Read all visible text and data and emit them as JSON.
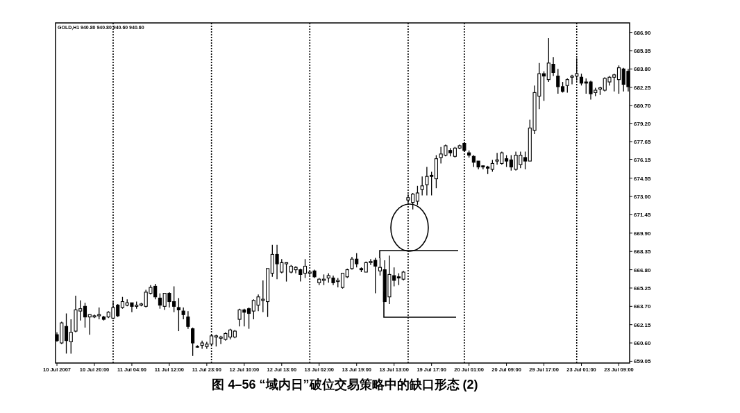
{
  "chart_data": {
    "type": "candlestick",
    "title": "图 4–56 “域内日”破位交易策略中的缺口形态 (2)",
    "annotations": [
      "GOLD,H1 940.80 940.80 940.60 940.60"
    ],
    "categories": [
      "10 Jul 2007",
      null,
      null,
      null,
      null,
      null,
      null,
      null,
      "10 Jul 20:00",
      null,
      null,
      null,
      null,
      null,
      null,
      null,
      "11 Jul 04:00",
      null,
      null,
      null,
      null,
      null,
      null,
      null,
      "11 Jul 12:00",
      null,
      null,
      null,
      null,
      null,
      null,
      null,
      "11 Jul 23:00",
      null,
      null,
      null,
      null,
      null,
      null,
      null,
      "12 Jul 10:00",
      null,
      null,
      null,
      null,
      null,
      null,
      null,
      "12 Jul 13:00",
      null,
      null,
      null,
      null,
      null,
      null,
      null,
      "13 Jul 02:00",
      null,
      null,
      null,
      null,
      null,
      null,
      null,
      "13 Jul 19:00",
      null,
      null,
      null,
      null,
      null,
      null,
      null,
      "13 Jul 13:00",
      null,
      null,
      null,
      null,
      null,
      null,
      null,
      "19 Jul 17:00",
      null,
      null,
      null,
      null,
      null,
      null,
      null,
      "20 Jul 01:00",
      null,
      null,
      null,
      null,
      null,
      null,
      null,
      "20 Jul 09:00",
      null,
      null,
      null,
      null,
      null,
      null,
      null,
      "29 Jul 17:00",
      null,
      null,
      null,
      null,
      null,
      null,
      null,
      "23 Jul 01:00",
      null,
      null,
      null,
      null,
      null,
      null,
      null,
      "23 Jul 09:00",
      null,
      null
    ],
    "ohlc": [
      [
        661.3,
        661.5,
        660.7,
        660.8
      ],
      [
        660.6,
        662.4,
        660.5,
        662.3
      ],
      [
        662.0,
        663.1,
        659.7,
        660.8
      ],
      [
        660.7,
        662.6,
        659.7,
        661.5
      ],
      [
        661.6,
        664.6,
        661.5,
        663.4
      ],
      [
        663.3,
        664.2,
        662.5,
        663.5
      ],
      [
        663.7,
        664.0,
        661.9,
        662.8
      ],
      [
        662.8,
        663.0,
        661.3,
        663.0
      ],
      [
        662.8,
        663.0,
        662.7,
        662.9
      ],
      [
        662.9,
        663.6,
        662.6,
        663.0
      ],
      [
        662.8,
        662.9,
        662.5,
        662.6
      ],
      [
        662.8,
        663.3,
        662.7,
        663.2
      ],
      [
        662.7,
        664.1,
        662.6,
        663.6
      ],
      [
        663.8,
        663.9,
        662.8,
        662.9
      ],
      [
        663.6,
        664.5,
        663.5,
        664.1
      ],
      [
        663.8,
        664.3,
        663.7,
        664.0
      ],
      [
        664.0,
        664.0,
        663.2,
        663.7
      ],
      [
        663.7,
        664.1,
        663.5,
        663.8
      ],
      [
        663.8,
        664.0,
        663.7,
        663.9
      ],
      [
        663.7,
        665.1,
        663.6,
        664.9
      ],
      [
        664.8,
        665.5,
        664.7,
        665.3
      ],
      [
        665.4,
        665.6,
        664.3,
        664.5
      ],
      [
        664.4,
        664.8,
        663.5,
        663.8
      ],
      [
        663.7,
        664.8,
        663.4,
        664.8
      ],
      [
        664.8,
        664.9,
        663.6,
        664.1
      ],
      [
        664.1,
        665.4,
        663.2,
        663.7
      ],
      [
        663.6,
        664.4,
        661.6,
        663.4
      ],
      [
        663.3,
        663.6,
        662.6,
        663.0
      ],
      [
        662.8,
        663.3,
        661.8,
        662.0
      ],
      [
        661.8,
        661.9,
        659.5,
        660.6
      ],
      [
        660.3,
        660.4,
        660.2,
        660.3
      ],
      [
        660.4,
        660.8,
        660.1,
        660.6
      ],
      [
        660.3,
        660.7,
        660.1,
        660.5
      ],
      [
        660.5,
        661.3,
        660.4,
        661.2
      ],
      [
        661.1,
        661.3,
        660.3,
        661.2
      ],
      [
        661.0,
        661.2,
        660.5,
        661.1
      ],
      [
        660.9,
        661.5,
        660.8,
        661.4
      ],
      [
        661.1,
        661.8,
        660.9,
        661.7
      ],
      [
        661.1,
        661.7,
        661.0,
        661.6
      ],
      [
        662.6,
        663.5,
        662.0,
        663.4
      ],
      [
        663.4,
        663.5,
        662.0,
        663.2
      ],
      [
        663.5,
        663.6,
        661.8,
        663.1
      ],
      [
        663.3,
        664.3,
        662.6,
        664.2
      ],
      [
        663.8,
        664.7,
        663.3,
        664.5
      ],
      [
        664.2,
        665.9,
        663.2,
        664.3
      ],
      [
        664.1,
        666.9,
        662.8,
        666.9
      ],
      [
        666.5,
        668.9,
        666.2,
        668.1
      ],
      [
        668.1,
        668.9,
        666.0,
        667.3
      ],
      [
        666.6,
        667.7,
        666.5,
        667.4
      ],
      [
        667.3,
        667.4,
        665.8,
        667.4
      ],
      [
        666.6,
        667.2,
        666.5,
        667.1
      ],
      [
        666.8,
        667.1,
        666.5,
        667.0
      ],
      [
        666.8,
        666.9,
        665.8,
        666.4
      ],
      [
        666.5,
        667.7,
        666.1,
        667.1
      ],
      [
        666.5,
        666.7,
        666.3,
        666.6
      ],
      [
        666.7,
        666.8,
        666.1,
        666.2
      ],
      [
        665.7,
        666.1,
        665.5,
        666.0
      ],
      [
        665.9,
        666.4,
        665.5,
        666.0
      ],
      [
        666.1,
        666.5,
        665.7,
        666.3
      ],
      [
        666.1,
        666.3,
        665.5,
        665.7
      ],
      [
        665.8,
        666.1,
        665.3,
        665.9
      ],
      [
        665.3,
        666.5,
        665.2,
        666.5
      ],
      [
        666.2,
        666.9,
        666.1,
        666.8
      ],
      [
        666.9,
        667.9,
        666.8,
        667.7
      ],
      [
        667.7,
        668.2,
        667.0,
        667.3
      ],
      [
        666.9,
        667.0,
        666.6,
        666.8
      ],
      [
        666.6,
        667.5,
        666.6,
        667.4
      ],
      [
        667.4,
        667.7,
        667.2,
        667.5
      ],
      [
        667.6,
        667.8,
        664.8,
        667.1
      ],
      [
        666.7,
        667.8,
        666.3,
        667.0
      ],
      [
        666.8,
        667.6,
        664.1,
        664.1
      ],
      [
        664.5,
        668.0,
        663.9,
        666.4
      ],
      [
        666.3,
        667.0,
        665.4,
        665.9
      ],
      [
        666.2,
        666.5,
        665.5,
        666.1
      ],
      [
        666.0,
        666.7,
        665.9,
        666.6
      ],
      [
        672.7,
        673.2,
        672.3,
        672.9
      ],
      [
        672.5,
        673.3,
        671.9,
        673.2
      ],
      [
        672.6,
        673.9,
        672.3,
        673.3
      ],
      [
        673.6,
        674.7,
        673.1,
        673.9
      ],
      [
        674.0,
        675.5,
        673.1,
        674.7
      ],
      [
        674.8,
        675.1,
        673.1,
        674.7
      ],
      [
        674.5,
        676.5,
        673.7,
        676.2
      ],
      [
        676.3,
        677.2,
        675.8,
        676.6
      ],
      [
        676.5,
        677.4,
        676.4,
        677.3
      ],
      [
        676.9,
        677.1,
        676.4,
        676.7
      ],
      [
        676.4,
        677.2,
        676.3,
        677.1
      ],
      [
        677.1,
        677.4,
        677.0,
        677.3
      ],
      [
        677.5,
        677.6,
        676.8,
        676.9
      ],
      [
        676.7,
        676.9,
        676.3,
        676.5
      ],
      [
        676.4,
        676.5,
        675.5,
        675.9
      ],
      [
        676.0,
        676.0,
        675.3,
        675.5
      ],
      [
        675.6,
        675.6,
        675.3,
        675.5
      ],
      [
        675.5,
        675.6,
        674.9,
        675.4
      ],
      [
        675.3,
        676.1,
        675.1,
        675.8
      ],
      [
        676.0,
        676.7,
        675.7,
        676.1
      ],
      [
        675.8,
        676.8,
        675.7,
        676.7
      ],
      [
        676.2,
        676.5,
        675.5,
        676.0
      ],
      [
        676.1,
        676.5,
        675.2,
        675.5
      ],
      [
        675.3,
        676.8,
        675.2,
        676.5
      ],
      [
        675.7,
        676.8,
        675.4,
        676.5
      ],
      [
        676.3,
        676.8,
        675.3,
        676.0
      ],
      [
        676.0,
        679.5,
        676.0,
        678.8
      ],
      [
        678.6,
        682.4,
        678.3,
        681.8
      ],
      [
        681.5,
        684.3,
        680.4,
        683.4
      ],
      [
        683.4,
        683.6,
        681.1,
        683.2
      ],
      [
        682.9,
        686.4,
        682.7,
        684.3
      ],
      [
        684.2,
        684.8,
        683.2,
        683.5
      ],
      [
        683.2,
        683.8,
        681.7,
        682.3
      ],
      [
        682.3,
        682.7,
        681.8,
        681.9
      ],
      [
        682.4,
        683.0,
        681.8,
        682.9
      ],
      [
        683.1,
        683.3,
        682.5,
        683.2
      ],
      [
        683.2,
        684.7,
        682.8,
        683.4
      ],
      [
        683.1,
        683.4,
        682.4,
        682.6
      ],
      [
        682.7,
        683.0,
        681.7,
        682.6
      ],
      [
        682.7,
        682.8,
        681.2,
        681.7
      ],
      [
        681.8,
        682.2,
        681.5,
        682.0
      ],
      [
        682.1,
        682.3,
        681.6,
        682.2
      ],
      [
        682.0,
        683.1,
        681.9,
        683.0
      ],
      [
        682.7,
        683.2,
        682.4,
        683.1
      ],
      [
        683.1,
        683.4,
        681.9,
        683.3
      ],
      [
        682.9,
        684.1,
        681.7,
        683.9
      ],
      [
        683.8,
        683.9,
        681.9,
        682.5
      ],
      [
        683.6,
        683.8,
        681.9,
        682.3
      ]
    ],
    "color": "#000000",
    "ylim": [
      658.9,
      687.7
    ],
    "grid": "x",
    "yticks": [
      {
        "value": 686.9,
        "label": "686.90"
      },
      {
        "value": 685.35,
        "label": "685.35"
      },
      {
        "value": 683.8,
        "label": "683.80"
      },
      {
        "value": 682.25,
        "label": "682.25"
      },
      {
        "value": 680.7,
        "label": "680.70"
      },
      {
        "value": 679.2,
        "label": "679.20"
      },
      {
        "value": 677.65,
        "label": "677.65"
      },
      {
        "value": 676.15,
        "label": "676.15"
      },
      {
        "value": 674.55,
        "label": "674.55"
      },
      {
        "value": 673.0,
        "label": "673.00"
      },
      {
        "value": 671.45,
        "label": "671.45"
      },
      {
        "value": 669.9,
        "label": "669.90"
      },
      {
        "value": 668.35,
        "label": "668.35"
      },
      {
        "value": 666.8,
        "label": "666.80"
      },
      {
        "value": 665.25,
        "label": "665.25"
      },
      {
        "value": 663.7,
        "label": "663.70"
      },
      {
        "value": 662.15,
        "label": "662.15"
      },
      {
        "value": 660.6,
        "label": "660.60"
      },
      {
        "value": 659.05,
        "label": "659.05"
      }
    ]
  }
}
